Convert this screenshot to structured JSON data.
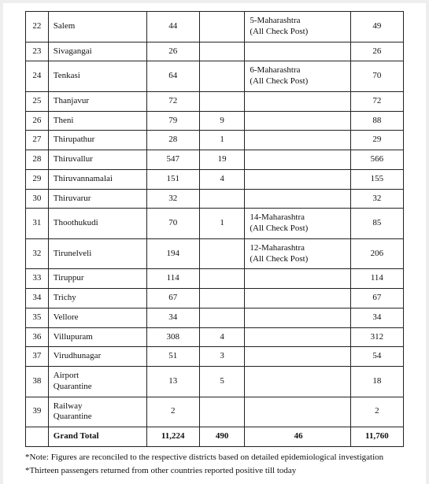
{
  "table": {
    "rows": [
      {
        "sn": "22",
        "name": "Salem",
        "c3": "44",
        "c4": "",
        "c5": "5-Maharashtra\n(All Check Post)",
        "c6": "49"
      },
      {
        "sn": "23",
        "name": "Sivagangai",
        "c3": "26",
        "c4": "",
        "c5": "",
        "c6": "26"
      },
      {
        "sn": "24",
        "name": "Tenkasi",
        "c3": "64",
        "c4": "",
        "c5": "6-Maharashtra\n(All Check Post)",
        "c6": "70"
      },
      {
        "sn": "25",
        "name": "Thanjavur",
        "c3": "72",
        "c4": "",
        "c5": "",
        "c6": "72"
      },
      {
        "sn": "26",
        "name": "Theni",
        "c3": "79",
        "c4": "9",
        "c5": "",
        "c6": "88"
      },
      {
        "sn": "27",
        "name": "Thirupathur",
        "c3": "28",
        "c4": "1",
        "c5": "",
        "c6": "29"
      },
      {
        "sn": "28",
        "name": "Thiruvallur",
        "c3": "547",
        "c4": "19",
        "c5": "",
        "c6": "566"
      },
      {
        "sn": "29",
        "name": "Thiruvannamalai",
        "c3": "151",
        "c4": "4",
        "c5": "",
        "c6": "155"
      },
      {
        "sn": "30",
        "name": "Thiruvarur",
        "c3": "32",
        "c4": "",
        "c5": "",
        "c6": "32"
      },
      {
        "sn": "31",
        "name": "Thoothukudi",
        "c3": "70",
        "c4": "1",
        "c5": "14-Maharashtra\n(All Check Post)",
        "c6": "85"
      },
      {
        "sn": "32",
        "name": "Tirunelveli",
        "c3": "194",
        "c4": "",
        "c5": "12-Maharashtra\n(All Check Post)",
        "c6": "206"
      },
      {
        "sn": "33",
        "name": "Tiruppur",
        "c3": "114",
        "c4": "",
        "c5": "",
        "c6": "114"
      },
      {
        "sn": "34",
        "name": "Trichy",
        "c3": "67",
        "c4": "",
        "c5": "",
        "c6": "67"
      },
      {
        "sn": "35",
        "name": "Vellore",
        "c3": "34",
        "c4": "",
        "c5": "",
        "c6": "34"
      },
      {
        "sn": "36",
        "name": "Villupuram",
        "c3": "308",
        "c4": "4",
        "c5": "",
        "c6": "312"
      },
      {
        "sn": "37",
        "name": "Virudhunagar",
        "c3": "51",
        "c4": "3",
        "c5": "",
        "c6": "54"
      },
      {
        "sn": "38",
        "name": "Airport\nQuarantine",
        "c3": "13",
        "c4": "5",
        "c5": "",
        "c6": "18"
      },
      {
        "sn": "39",
        "name": "Railway\nQuarantine",
        "c3": "2",
        "c4": "",
        "c5": "",
        "c6": "2"
      }
    ],
    "total": {
      "label": "Grand Total",
      "c3": "11,224",
      "c4": "490",
      "c5": "46",
      "c6": "11,760"
    }
  },
  "notes": {
    "n1": "*Note: Figures are reconciled to the respective districts based on detailed epidemiological investigation",
    "n2": "*Thirteen passengers returned from other countries reported positive till today"
  },
  "style": {
    "page_bg": "#ffffff",
    "outer_bg": "#eeeeee",
    "border_color": "#222222",
    "text_color": "#111111",
    "cell_fontsize": 11,
    "notes_fontsize": 11,
    "font_family": "Georgia, 'Times New Roman', serif",
    "col_widths_pct": [
      6,
      26,
      14,
      12,
      28,
      14
    ]
  }
}
